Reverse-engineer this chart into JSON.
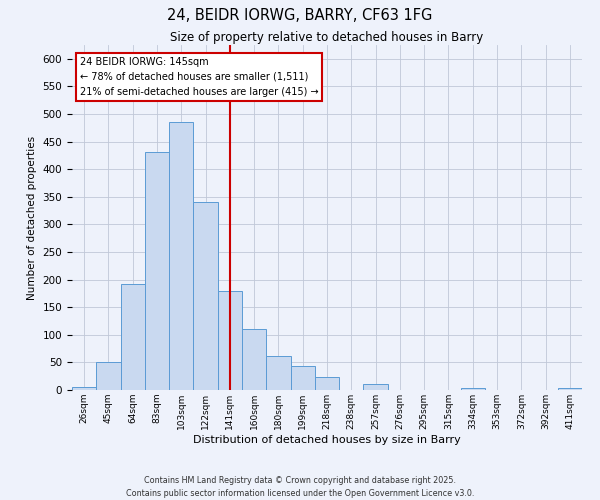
{
  "title": "24, BEIDR IORWG, BARRY, CF63 1FG",
  "subtitle": "Size of property relative to detached houses in Barry",
  "xlabel": "Distribution of detached houses by size in Barry",
  "ylabel": "Number of detached properties",
  "bar_labels": [
    "26sqm",
    "45sqm",
    "64sqm",
    "83sqm",
    "103sqm",
    "122sqm",
    "141sqm",
    "160sqm",
    "180sqm",
    "199sqm",
    "218sqm",
    "238sqm",
    "257sqm",
    "276sqm",
    "295sqm",
    "315sqm",
    "334sqm",
    "353sqm",
    "372sqm",
    "392sqm",
    "411sqm"
  ],
  "bar_values": [
    5,
    50,
    192,
    432,
    485,
    340,
    180,
    110,
    62,
    44,
    24,
    0,
    10,
    0,
    0,
    0,
    4,
    0,
    0,
    0,
    4
  ],
  "bar_color": "#c9d9f0",
  "bar_edge_color": "#5b9bd5",
  "vline_x": 6,
  "vline_color": "#cc0000",
  "ylim": [
    0,
    625
  ],
  "yticks": [
    0,
    50,
    100,
    150,
    200,
    250,
    300,
    350,
    400,
    450,
    500,
    550,
    600
  ],
  "annotation_title": "24 BEIDR IORWG: 145sqm",
  "annotation_line1": "← 78% of detached houses are smaller (1,511)",
  "annotation_line2": "21% of semi-detached houses are larger (415) →",
  "annotation_box_color": "#ffffff",
  "annotation_box_edge": "#cc0000",
  "footer1": "Contains HM Land Registry data © Crown copyright and database right 2025.",
  "footer2": "Contains public sector information licensed under the Open Government Licence v3.0.",
  "bg_color": "#eef2fb",
  "plot_bg_color": "#eef2fb",
  "grid_color": "#c0c8d8"
}
